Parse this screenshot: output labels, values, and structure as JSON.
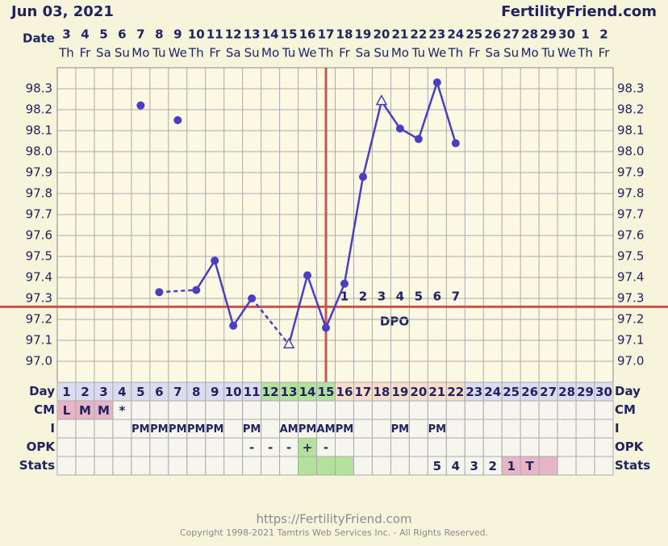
{
  "chart_data": {
    "type": "line",
    "title": "Jun 03, 2021",
    "site": "FertilityFriend.com",
    "date_label": "Date",
    "dpo_label": "DPO",
    "footer_url": "https://FertilityFriend.com",
    "copyright": "Copyright 1998-2021 Tamtris Web Services Inc. - All Rights Reserved.",
    "categories": [
      3,
      4,
      5,
      6,
      7,
      8,
      9,
      10,
      11,
      12,
      13,
      14,
      15,
      16,
      17,
      18,
      19,
      20,
      21,
      22,
      23,
      24,
      25,
      26,
      27,
      28,
      29,
      30,
      1,
      2
    ],
    "weekdays": [
      "Th",
      "Fr",
      "Sa",
      "Su",
      "Mo",
      "Tu",
      "We",
      "Th",
      "Fr",
      "Sa",
      "Su",
      "Mo",
      "Tu",
      "We",
      "Th",
      "Fr",
      "Sa",
      "Su",
      "Mo",
      "Tu",
      "We",
      "Th",
      "Fr",
      "Sa",
      "Su",
      "Mo",
      "Tu",
      "We",
      "Th",
      "Fr"
    ],
    "ylim": [
      96.9,
      98.4
    ],
    "yticks": [
      {
        "value": 97.0,
        "label": "97.0"
      },
      97.1,
      97.2,
      97.3,
      97.4,
      97.5,
      97.6,
      97.7,
      97.8,
      97.9,
      {
        "value": 98.0,
        "label": "98.0"
      },
      98.1,
      98.2,
      98.3
    ],
    "grid": true,
    "series": [
      {
        "name": "temperature",
        "color": "#4a3fc2",
        "values": [
          null,
          null,
          null,
          null,
          null,
          97.33,
          null,
          97.34,
          97.48,
          97.17,
          97.3,
          null,
          97.08,
          97.41,
          97.16,
          97.37,
          97.88,
          98.24,
          98.11,
          98.06,
          98.33,
          98.04,
          null,
          null,
          null,
          null,
          null,
          null,
          null,
          null
        ],
        "markers": [
          null,
          null,
          null,
          null,
          null,
          "circle",
          null,
          "circle",
          "circle",
          "circle",
          "circle",
          null,
          "triangle",
          "circle",
          "circle",
          "circle",
          "circle",
          "triangle",
          "circle",
          "circle",
          "circle",
          "circle",
          null,
          null,
          null,
          null,
          null,
          null,
          null,
          null
        ]
      },
      {
        "name": "discarded",
        "color": "#4a3fc2",
        "values": [
          null,
          null,
          null,
          null,
          98.22,
          null,
          98.15,
          null,
          null,
          null,
          null,
          null,
          null,
          null,
          null,
          null,
          null,
          null,
          null,
          null,
          null,
          null,
          null,
          null,
          null,
          null,
          null,
          null,
          null,
          null
        ]
      }
    ],
    "coverline": 97.26,
    "ovulation_day": 15,
    "line_color": "#c9544e",
    "dpo": [
      null,
      null,
      null,
      null,
      null,
      null,
      null,
      null,
      null,
      null,
      null,
      null,
      null,
      null,
      null,
      1,
      2,
      3,
      4,
      5,
      6,
      7,
      null,
      null,
      null,
      null,
      null,
      null,
      null,
      null
    ],
    "table": [
      {
        "label": "Day",
        "cells": [
          1,
          2,
          3,
          4,
          5,
          6,
          7,
          8,
          9,
          10,
          11,
          12,
          13,
          14,
          15,
          16,
          17,
          18,
          19,
          20,
          21,
          22,
          23,
          24,
          25,
          26,
          27,
          28,
          29,
          30
        ],
        "shading": [
          [
            0,
            10,
            "#dcdcef"
          ],
          [
            11,
            14,
            "#b4e29c"
          ],
          [
            15,
            21,
            "#f8ddca"
          ],
          [
            22,
            29,
            "#dcdcef"
          ]
        ]
      },
      {
        "label": "CM",
        "cells": [
          "L",
          "M",
          "M",
          "*",
          null,
          null,
          null,
          null,
          null,
          null,
          null,
          null,
          null,
          null,
          null,
          null,
          null,
          null,
          null,
          null,
          null,
          null,
          null,
          null,
          null,
          null,
          null,
          null,
          null,
          null
        ],
        "shading": [
          [
            0,
            2,
            "#e7b5c7"
          ]
        ]
      },
      {
        "label": "I",
        "cells": [
          null,
          null,
          null,
          null,
          "PM",
          "PM",
          "PM",
          "PM",
          "PM",
          null,
          "PM",
          null,
          "AM",
          "PM",
          "AM",
          "PM",
          null,
          null,
          "PM",
          null,
          "PM",
          null,
          null,
          null,
          null,
          null,
          null,
          null,
          null,
          null
        ],
        "shading": []
      },
      {
        "label": "OPK",
        "cells": [
          null,
          null,
          null,
          null,
          null,
          null,
          null,
          null,
          null,
          null,
          "-",
          "-",
          "-",
          "+",
          "-",
          null,
          null,
          null,
          null,
          null,
          null,
          null,
          null,
          null,
          null,
          null,
          null,
          null,
          null,
          null
        ],
        "shading": [
          [
            13,
            13,
            "#b4e29c"
          ]
        ]
      },
      {
        "label": "Stats",
        "cells": [
          null,
          null,
          null,
          null,
          null,
          null,
          null,
          null,
          null,
          null,
          null,
          null,
          null,
          null,
          null,
          null,
          null,
          null,
          null,
          null,
          "5",
          "4",
          "3",
          "2",
          "1",
          "T",
          null,
          null,
          null,
          null
        ],
        "shading": [
          [
            13,
            15,
            "#b4e29c"
          ],
          [
            24,
            26,
            "#e7b5c7"
          ]
        ]
      }
    ]
  }
}
